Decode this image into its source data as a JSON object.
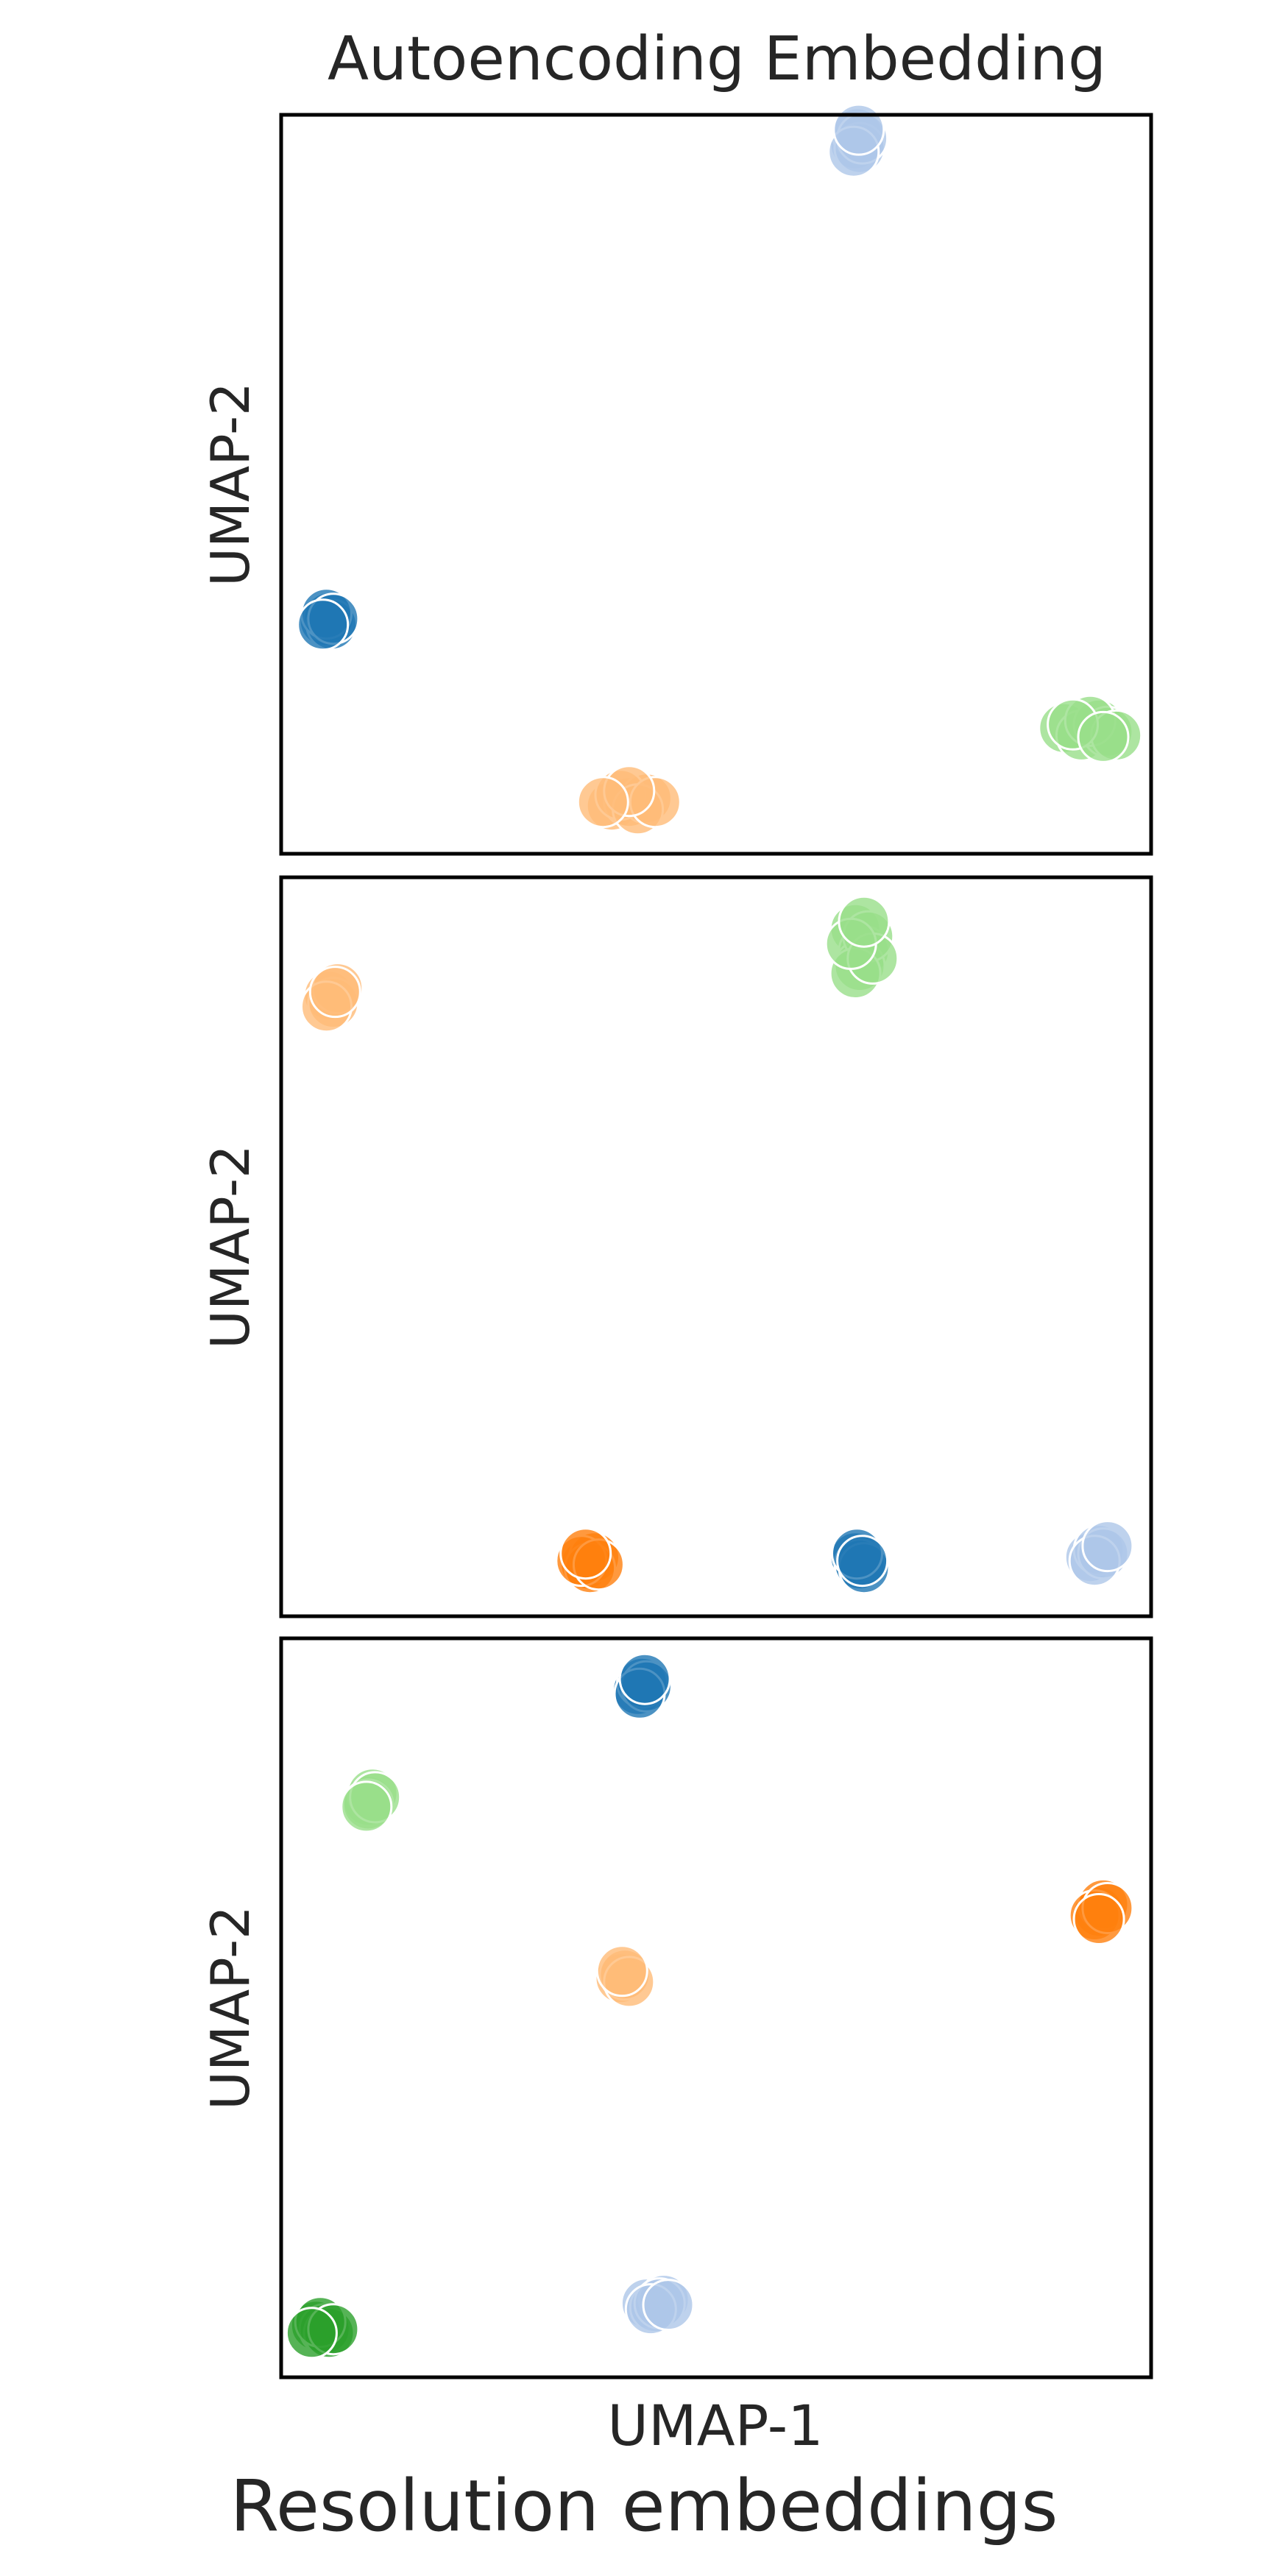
{
  "figure": {
    "title": "Autoencoding Embedding",
    "caption": "Resolution embeddings"
  },
  "colors": {
    "c_dark_blue": "#1f77b4",
    "c_light_blue": "#aec7e8",
    "c_dark_orange": "#ff7f0e",
    "c_light_orange": "#ffbb78",
    "c_dark_green": "#2ca02c",
    "c_light_green": "#98df8a"
  },
  "chart_data": [
    {
      "type": "scatter",
      "title": "Autoencoding Embedding",
      "xlabel": "",
      "ylabel": "UMAP-2",
      "xticks": "none",
      "yticks": "none",
      "grid": false,
      "xlim": [
        0,
        1
      ],
      "ylim": [
        0,
        1
      ],
      "series": [
        {
          "color": "#aec7e8",
          "points": [
            [
              0.66,
              0.96
            ],
            [
              0.662,
              0.975
            ],
            [
              0.665,
              0.955
            ],
            [
              0.668,
              0.968
            ],
            [
              0.658,
              0.95
            ],
            [
              0.664,
              0.98
            ]
          ]
        },
        {
          "color": "#1f77b4",
          "points": [
            [
              0.05,
              0.315
            ],
            [
              0.055,
              0.32
            ],
            [
              0.058,
              0.31
            ],
            [
              0.052,
              0.325
            ],
            [
              0.06,
              0.318
            ],
            [
              0.048,
              0.31
            ]
          ]
        },
        {
          "color": "#98df8a",
          "points": [
            [
              0.9,
              0.17
            ],
            [
              0.92,
              0.16
            ],
            [
              0.94,
              0.175
            ],
            [
              0.95,
              0.165
            ],
            [
              0.93,
              0.18
            ],
            [
              0.96,
              0.16
            ],
            [
              0.91,
              0.175
            ],
            [
              0.945,
              0.158
            ]
          ]
        },
        {
          "color": "#ffbb78",
          "points": [
            [
              0.38,
              0.065
            ],
            [
              0.4,
              0.07
            ],
            [
              0.42,
              0.075
            ],
            [
              0.39,
              0.08
            ],
            [
              0.41,
              0.06
            ],
            [
              0.43,
              0.07
            ],
            [
              0.4,
              0.085
            ],
            [
              0.37,
              0.07
            ]
          ]
        }
      ]
    },
    {
      "type": "scatter",
      "title": "",
      "xlabel": "",
      "ylabel": "UMAP-2",
      "xticks": "none",
      "yticks": "none",
      "grid": false,
      "xlim": [
        0,
        1
      ],
      "ylim": [
        0,
        1
      ],
      "series": [
        {
          "color": "#ffbb78",
          "points": [
            [
              0.055,
              0.84
            ],
            [
              0.06,
              0.83
            ],
            [
              0.065,
              0.85
            ],
            [
              0.052,
              0.825
            ],
            [
              0.062,
              0.845
            ]
          ]
        },
        {
          "color": "#98df8a",
          "points": [
            [
              0.66,
              0.93
            ],
            [
              0.67,
              0.9
            ],
            [
              0.665,
              0.88
            ],
            [
              0.675,
              0.92
            ],
            [
              0.66,
              0.87
            ],
            [
              0.68,
              0.89
            ],
            [
              0.655,
              0.91
            ],
            [
              0.67,
              0.94
            ]
          ]
        },
        {
          "color": "#ff7f0e",
          "points": [
            [
              0.35,
              0.07
            ],
            [
              0.36,
              0.08
            ],
            [
              0.355,
              0.065
            ],
            [
              0.345,
              0.075
            ],
            [
              0.365,
              0.07
            ],
            [
              0.35,
              0.085
            ]
          ]
        },
        {
          "color": "#1f77b4",
          "points": [
            [
              0.66,
              0.08
            ],
            [
              0.665,
              0.07
            ],
            [
              0.67,
              0.065
            ],
            [
              0.662,
              0.085
            ],
            [
              0.668,
              0.075
            ]
          ]
        },
        {
          "color": "#aec7e8",
          "points": [
            [
              0.93,
              0.08
            ],
            [
              0.94,
              0.09
            ],
            [
              0.945,
              0.085
            ],
            [
              0.935,
              0.075
            ],
            [
              0.95,
              0.095
            ]
          ]
        }
      ]
    },
    {
      "type": "scatter",
      "title": "",
      "xlabel": "UMAP-1",
      "ylabel": "UMAP-2",
      "xticks": "none",
      "yticks": "none",
      "grid": false,
      "xlim": [
        0,
        1
      ],
      "ylim": [
        0,
        1
      ],
      "series": [
        {
          "color": "#1f77b4",
          "points": [
            [
              0.41,
              0.93
            ],
            [
              0.415,
              0.94
            ],
            [
              0.42,
              0.935
            ],
            [
              0.412,
              0.925
            ],
            [
              0.418,
              0.945
            ]
          ]
        },
        {
          "color": "#98df8a",
          "points": [
            [
              0.1,
              0.78
            ],
            [
              0.105,
              0.79
            ],
            [
              0.1,
              0.775
            ],
            [
              0.108,
              0.785
            ],
            [
              0.098,
              0.772
            ]
          ]
        },
        {
          "color": "#ff7f0e",
          "points": [
            [
              0.94,
              0.63
            ],
            [
              0.945,
              0.64
            ],
            [
              0.935,
              0.625
            ],
            [
              0.95,
              0.635
            ],
            [
              0.94,
              0.62
            ]
          ]
        },
        {
          "color": "#ffbb78",
          "points": [
            [
              0.39,
              0.54
            ],
            [
              0.395,
              0.545
            ],
            [
              0.4,
              0.535
            ],
            [
              0.392,
              0.55
            ]
          ]
        },
        {
          "color": "#aec7e8",
          "points": [
            [
              0.42,
              0.1
            ],
            [
              0.43,
              0.095
            ],
            [
              0.44,
              0.105
            ],
            [
              0.435,
              0.1
            ],
            [
              0.425,
              0.092
            ],
            [
              0.445,
              0.098
            ]
          ]
        },
        {
          "color": "#2ca02c",
          "points": [
            [
              0.04,
              0.07
            ],
            [
              0.05,
              0.065
            ],
            [
              0.055,
              0.06
            ],
            [
              0.045,
              0.075
            ],
            [
              0.06,
              0.065
            ],
            [
              0.035,
              0.06
            ]
          ]
        }
      ]
    }
  ]
}
